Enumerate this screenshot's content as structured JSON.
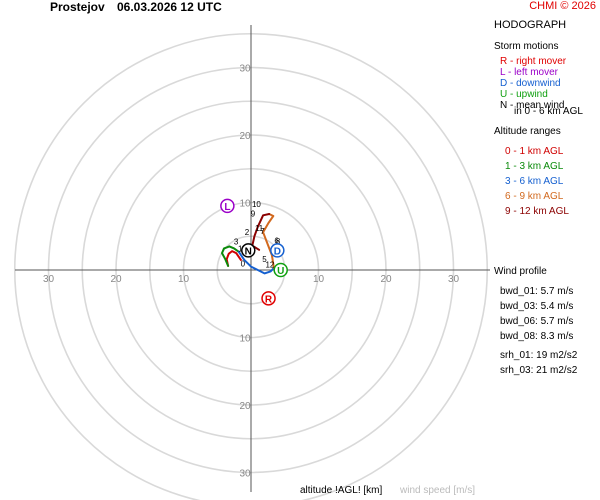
{
  "header": {
    "station": "Prostejov",
    "datetime": "06.03.2026 12 UTC",
    "credit": "CHMI © 2026"
  },
  "legend": {
    "title": "HODOGRAPH",
    "storm_title": "Storm motions",
    "storm_items": [
      {
        "text": "R - right mover",
        "color": "#e00000"
      },
      {
        "text": "L - left mover",
        "color": "#9b00c8"
      },
      {
        "text": "D - downwind",
        "color": "#1560d0"
      },
      {
        "text": "U - upwind",
        "color": "#10a010"
      },
      {
        "text": "N - mean wind",
        "color": "#000000"
      },
      {
        "text": "in 0 - 6 km AGL",
        "color": "#000000"
      }
    ],
    "altitude_title": "Altitude ranges",
    "altitude_items": [
      {
        "text": "0 - 1 km AGL",
        "color": "#d00000"
      },
      {
        "text": "1 - 3 km AGL",
        "color": "#0a8a0a"
      },
      {
        "text": "3 - 6 km AGL",
        "color": "#1560d0"
      },
      {
        "text": "6 - 9 km AGL",
        "color": "#d2691e"
      },
      {
        "text": "9 - 12 km AGL",
        "color": "#8b0000"
      }
    ],
    "wind_profile_title": "Wind profile",
    "bwd": [
      "bwd_01: 5.7 m/s",
      "bwd_03: 5.4 m/s",
      "bwd_06: 5.7 m/s",
      "bwd_08: 8.3 m/s"
    ],
    "srh": [
      "srh_01: 19 m2/s2",
      "srh_03: 21 m2/s2"
    ]
  },
  "footer": {
    "altitude_label": "altitude !AGL! [km]",
    "speed_label": "wind speed [m/s]"
  },
  "chart_data": {
    "type": "line",
    "title": "HODOGRAPH",
    "xlabel": "wind speed [m/s]",
    "ylabel": "wind speed [m/s]",
    "xlim": [
      -35,
      35
    ],
    "ylim": [
      -35,
      35
    ],
    "ring_spacing": 5,
    "axis_tick_labels_x": [
      "30",
      "20",
      "10",
      "10",
      "20",
      "30"
    ],
    "axis_tick_labels_y": [
      "30",
      "20",
      "10",
      "10",
      "20",
      "30"
    ],
    "axis_tick_values": [
      -30,
      -20,
      -10,
      10,
      20,
      30
    ],
    "grid": true,
    "series": [
      {
        "name": "0 - 1 km AGL",
        "color": "#d00000",
        "u": [
          -1.5,
          -2.2,
          -2.8,
          -3.3,
          -3.6,
          -3.4
        ],
        "v": [
          1.5,
          2.5,
          2.8,
          2.4,
          1.6,
          0.6
        ]
      },
      {
        "name": "1 - 3 km AGL",
        "color": "#0a8a0a",
        "u": [
          -3.4,
          -3.8,
          -4.3,
          -4.0,
          -3.2,
          -2.5,
          -1.8
        ],
        "v": [
          0.6,
          1.6,
          2.5,
          3.2,
          3.5,
          3.2,
          2.7
        ]
      },
      {
        "name": "3 - 6 km AGL",
        "color": "#1560d0",
        "u": [
          -1.8,
          -1.0,
          0.0,
          1.0,
          2.0,
          2.9,
          3.4
        ],
        "v": [
          2.7,
          1.5,
          0.5,
          0.0,
          -0.5,
          -0.2,
          0.3
        ]
      },
      {
        "name": "6 - 9 km AGL",
        "color": "#d2691e",
        "u": [
          3.4,
          3.1,
          2.4,
          1.8,
          2.6,
          3.3,
          2.7
        ],
        "v": [
          0.3,
          2.2,
          4.0,
          5.6,
          7.0,
          8.0,
          8.3
        ]
      },
      {
        "name": "9 - 12 km AGL",
        "color": "#8b0000",
        "u": [
          2.7,
          1.8,
          1.0,
          0.5,
          0.2,
          1.2
        ],
        "v": [
          8.3,
          8.1,
          6.4,
          5.0,
          3.6,
          3.0
        ]
      }
    ],
    "altitude_labels": [
      {
        "text": "10",
        "u": 0.8,
        "v": 9.8
      },
      {
        "text": "9",
        "u": 0.3,
        "v": 8.4
      },
      {
        "text": "8",
        "u": 4.0,
        "v": 4.3
      },
      {
        "text": "7",
        "u": 1.7,
        "v": 5.8
      },
      {
        "text": "6",
        "u": 3.8,
        "v": 4.4
      },
      {
        "text": "5",
        "u": 2.0,
        "v": 1.6
      },
      {
        "text": "3",
        "u": -2.2,
        "v": 4.2
      },
      {
        "text": "2",
        "u": -0.6,
        "v": 5.6
      },
      {
        "text": "1",
        "u": -1.6,
        "v": 3.2
      },
      {
        "text": "0",
        "u": -1.2,
        "v": 1.0
      },
      {
        "text": "11",
        "u": 1.2,
        "v": 6.2
      },
      {
        "text": "12",
        "u": 2.8,
        "v": 0.8
      }
    ],
    "storm_motions": [
      {
        "label": "R",
        "u": 2.6,
        "v": -4.2,
        "color": "#e00000"
      },
      {
        "label": "L",
        "u": -3.5,
        "v": 9.5,
        "color": "#9b00c8"
      },
      {
        "label": "D",
        "u": 3.9,
        "v": 2.9,
        "color": "#1560d0"
      },
      {
        "label": "U",
        "u": 4.4,
        "v": 0.0,
        "color": "#10a010"
      },
      {
        "label": "N",
        "u": -0.4,
        "v": 2.9,
        "color": "#000000"
      }
    ]
  }
}
